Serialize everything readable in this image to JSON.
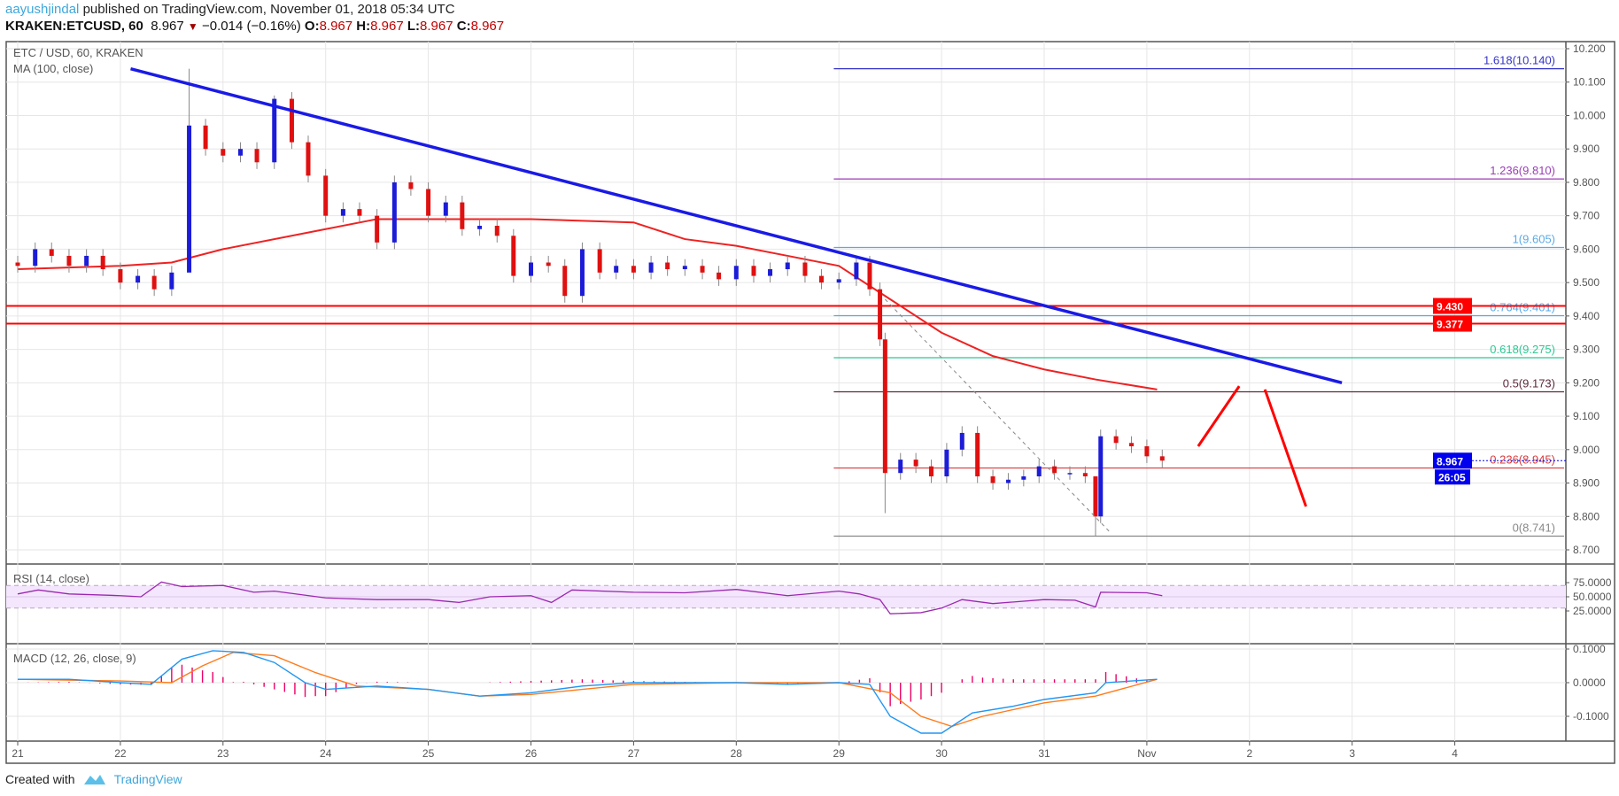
{
  "header": {
    "author": "aayushjindal",
    "published": "published on TradingView.com, November 01, 2018 05:34 UTC",
    "symbol": "KRAKEN:ETCUSD, 60",
    "last": "8.967",
    "change": "−0.014 (−0.16%)",
    "o_label": "O:",
    "o": "8.967",
    "h_label": "H:",
    "h": "8.967",
    "l_label": "L:",
    "l": "8.967",
    "c_label": "C:",
    "c": "8.967"
  },
  "footer": {
    "created_with": "Created with",
    "brand": "TradingView"
  },
  "colors": {
    "up": "#1c1cd8",
    "down": "#e01010",
    "trend": "#1a1ae6",
    "ma": "#ee2222",
    "hline": "#ff0000",
    "rsi": "#9c27b0",
    "macd": "#2196f3",
    "signal": "#ff7a1a",
    "hist": "#ee0066"
  },
  "chart_data": {
    "type": "candlestick",
    "title": "ETC / USD, 60, KRAKEN",
    "ma_label": "MA (100, close)",
    "ylim": [
      8.65,
      10.25
    ],
    "yticks": [
      "10.200",
      "10.100",
      "10.000",
      "9.900",
      "9.800",
      "9.700",
      "9.600",
      "9.500",
      "9.400",
      "9.300",
      "9.200",
      "9.100",
      "9.000",
      "8.900",
      "8.800",
      "8.700"
    ],
    "xticks": [
      {
        "d": 21,
        "label": "21"
      },
      {
        "d": 22,
        "label": "22"
      },
      {
        "d": 23,
        "label": "23"
      },
      {
        "d": 24,
        "label": "24"
      },
      {
        "d": 25,
        "label": "25"
      },
      {
        "d": 26,
        "label": "26"
      },
      {
        "d": 27,
        "label": "27"
      },
      {
        "d": 28,
        "label": "28"
      },
      {
        "d": 29,
        "label": "29"
      },
      {
        "d": 30,
        "label": "30"
      },
      {
        "d": 31,
        "label": "31"
      },
      {
        "d": 32,
        "label": "Nov"
      },
      {
        "d": 33,
        "label": "2"
      },
      {
        "d": 34,
        "label": "3"
      },
      {
        "d": 35,
        "label": "4"
      }
    ],
    "closes": [
      [
        21.0,
        9.55
      ],
      [
        21.17,
        9.6
      ],
      [
        21.33,
        9.58
      ],
      [
        21.5,
        9.55
      ],
      [
        21.67,
        9.58
      ],
      [
        21.83,
        9.54
      ],
      [
        22.0,
        9.5
      ],
      [
        22.17,
        9.52
      ],
      [
        22.33,
        9.48
      ],
      [
        22.5,
        9.53
      ],
      [
        22.67,
        9.97
      ],
      [
        22.83,
        9.9
      ],
      [
        23.0,
        9.88
      ],
      [
        23.17,
        9.9
      ],
      [
        23.33,
        9.86
      ],
      [
        23.5,
        10.05
      ],
      [
        23.67,
        9.92
      ],
      [
        23.83,
        9.82
      ],
      [
        24.0,
        9.7
      ],
      [
        24.17,
        9.72
      ],
      [
        24.33,
        9.7
      ],
      [
        24.5,
        9.62
      ],
      [
        24.67,
        9.8
      ],
      [
        24.83,
        9.78
      ],
      [
        25.0,
        9.7
      ],
      [
        25.17,
        9.74
      ],
      [
        25.33,
        9.66
      ],
      [
        25.5,
        9.67
      ],
      [
        25.67,
        9.64
      ],
      [
        25.83,
        9.52
      ],
      [
        26.0,
        9.56
      ],
      [
        26.17,
        9.55
      ],
      [
        26.33,
        9.46
      ],
      [
        26.5,
        9.6
      ],
      [
        26.67,
        9.53
      ],
      [
        26.83,
        9.55
      ],
      [
        27.0,
        9.53
      ],
      [
        27.17,
        9.56
      ],
      [
        27.33,
        9.54
      ],
      [
        27.5,
        9.55
      ],
      [
        27.67,
        9.53
      ],
      [
        27.83,
        9.51
      ],
      [
        28.0,
        9.55
      ],
      [
        28.17,
        9.52
      ],
      [
        28.33,
        9.54
      ],
      [
        28.5,
        9.56
      ],
      [
        28.67,
        9.52
      ],
      [
        28.83,
        9.5
      ],
      [
        29.0,
        9.51
      ],
      [
        29.17,
        9.56
      ],
      [
        29.3,
        9.48
      ],
      [
        29.4,
        9.33
      ],
      [
        29.45,
        8.93
      ],
      [
        29.6,
        8.97
      ],
      [
        29.75,
        8.95
      ],
      [
        29.9,
        8.92
      ],
      [
        30.05,
        9.0
      ],
      [
        30.2,
        9.05
      ],
      [
        30.35,
        8.92
      ],
      [
        30.5,
        8.9
      ],
      [
        30.65,
        8.91
      ],
      [
        30.8,
        8.92
      ],
      [
        30.95,
        8.95
      ],
      [
        31.1,
        8.93
      ],
      [
        31.25,
        8.93
      ],
      [
        31.4,
        8.92
      ],
      [
        31.5,
        8.8
      ],
      [
        31.55,
        9.04
      ],
      [
        31.7,
        9.02
      ],
      [
        31.85,
        9.01
      ],
      [
        32.0,
        8.98
      ],
      [
        32.15,
        8.967
      ]
    ],
    "spike_highs": [
      [
        22.67,
        10.14
      ],
      [
        23.5,
        10.06
      ],
      [
        31.5,
        8.8
      ]
    ],
    "spike_lows": [
      [
        31.5,
        8.741
      ],
      [
        29.45,
        8.81
      ],
      [
        22.67,
        9.71
      ]
    ],
    "ma100": [
      [
        21,
        9.54
      ],
      [
        22,
        9.55
      ],
      [
        22.5,
        9.56
      ],
      [
        23,
        9.6
      ],
      [
        24,
        9.66
      ],
      [
        24.5,
        9.69
      ],
      [
        25,
        9.69
      ],
      [
        26,
        9.69
      ],
      [
        27,
        9.68
      ],
      [
        27.5,
        9.63
      ],
      [
        28,
        9.61
      ],
      [
        28.5,
        9.58
      ],
      [
        29,
        9.55
      ],
      [
        29.5,
        9.45
      ],
      [
        30,
        9.35
      ],
      [
        30.5,
        9.28
      ],
      [
        31,
        9.24
      ],
      [
        31.5,
        9.21
      ],
      [
        32.1,
        9.18
      ]
    ],
    "trendline": [
      [
        22.1,
        10.14
      ],
      [
        33.9,
        9.2
      ]
    ],
    "projection_up": [
      [
        32.5,
        9.01
      ],
      [
        32.9,
        9.19
      ]
    ],
    "projection_down": [
      [
        33.15,
        9.18
      ],
      [
        33.55,
        8.83
      ]
    ],
    "retrace_dashed": [
      [
        29.45,
        9.45
      ],
      [
        31.65,
        8.75
      ]
    ],
    "hlines": [
      {
        "price": 9.43,
        "label": "9.430"
      },
      {
        "price": 9.377,
        "label": "9.377"
      }
    ],
    "fib": {
      "start": 28.95,
      "levels": [
        {
          "ratio": "1.618",
          "price": 10.14,
          "label": "1.618(10.140)",
          "color": "#3434c8"
        },
        {
          "ratio": "1.236",
          "price": 9.81,
          "label": "1.236(9.810)",
          "color": "#9c3cb8"
        },
        {
          "ratio": "1",
          "price": 9.605,
          "label": "1(9.605)",
          "color": "#5aa9e6"
        },
        {
          "ratio": "0.764",
          "price": 9.401,
          "label": "0.764(9.401)",
          "color": "#5aa9e6"
        },
        {
          "ratio": "0.618",
          "price": 9.275,
          "label": "0.618(9.275)",
          "color": "#2ec795"
        },
        {
          "ratio": "0.5",
          "price": 9.173,
          "label": "0.5(9.173)",
          "color": "#5d2a3e"
        },
        {
          "ratio": "0.236",
          "price": 8.945,
          "label": "0.236(8.945)",
          "color": "#d83a3a"
        },
        {
          "ratio": "0",
          "price": 8.741,
          "label": "0(8.741)",
          "color": "#888888"
        }
      ]
    },
    "last_price_tag": "8.967",
    "countdown_tag": "26:05",
    "rsi": {
      "label": "RSI (14, close)",
      "yticks": [
        "75.0000",
        "50.0000",
        "25.0000"
      ],
      "band": [
        30,
        70
      ],
      "values": [
        [
          21,
          55
        ],
        [
          21.2,
          62
        ],
        [
          21.5,
          55
        ],
        [
          22,
          52
        ],
        [
          22.2,
          50
        ],
        [
          22.4,
          76
        ],
        [
          22.6,
          68
        ],
        [
          23,
          70
        ],
        [
          23.3,
          58
        ],
        [
          23.5,
          60
        ],
        [
          24,
          48
        ],
        [
          24.5,
          45
        ],
        [
          25,
          45
        ],
        [
          25.3,
          40
        ],
        [
          25.6,
          50
        ],
        [
          26,
          52
        ],
        [
          26.2,
          40
        ],
        [
          26.4,
          62
        ],
        [
          27,
          58
        ],
        [
          27.5,
          57
        ],
        [
          28,
          63
        ],
        [
          28.5,
          52
        ],
        [
          29,
          60
        ],
        [
          29.2,
          55
        ],
        [
          29.4,
          45
        ],
        [
          29.5,
          20
        ],
        [
          29.8,
          22
        ],
        [
          30,
          30
        ],
        [
          30.2,
          45
        ],
        [
          30.5,
          38
        ],
        [
          31,
          45
        ],
        [
          31.3,
          44
        ],
        [
          31.5,
          32
        ],
        [
          31.55,
          58
        ],
        [
          32,
          57
        ],
        [
          32.15,
          52
        ]
      ]
    },
    "macd": {
      "label": "MACD (12, 26, close, 9)",
      "yticks": [
        "0.1000",
        "0.0000",
        "-0.1000"
      ],
      "macd": [
        [
          21,
          0.01
        ],
        [
          21.5,
          0.01
        ],
        [
          22,
          0.0
        ],
        [
          22.3,
          -0.005
        ],
        [
          22.6,
          0.07
        ],
        [
          22.9,
          0.095
        ],
        [
          23.2,
          0.09
        ],
        [
          23.5,
          0.06
        ],
        [
          23.8,
          0.0
        ],
        [
          24.0,
          -0.02
        ],
        [
          24.5,
          -0.01
        ],
        [
          25,
          -0.02
        ],
        [
          25.5,
          -0.04
        ],
        [
          26,
          -0.03
        ],
        [
          26.5,
          -0.01
        ],
        [
          27,
          0.0
        ],
        [
          28,
          0.0
        ],
        [
          28.5,
          -0.005
        ],
        [
          29,
          0.0
        ],
        [
          29.3,
          -0.005
        ],
        [
          29.5,
          -0.1
        ],
        [
          29.8,
          -0.15
        ],
        [
          30.0,
          -0.15
        ],
        [
          30.3,
          -0.09
        ],
        [
          30.7,
          -0.07
        ],
        [
          31,
          -0.05
        ],
        [
          31.5,
          -0.03
        ],
        [
          31.6,
          0.0
        ],
        [
          32.1,
          0.01
        ]
      ],
      "signal": [
        [
          21,
          0.01
        ],
        [
          22,
          0.005
        ],
        [
          22.5,
          0.0
        ],
        [
          22.8,
          0.05
        ],
        [
          23.1,
          0.09
        ],
        [
          23.5,
          0.08
        ],
        [
          23.9,
          0.03
        ],
        [
          24.3,
          -0.01
        ],
        [
          25,
          -0.02
        ],
        [
          25.5,
          -0.04
        ],
        [
          26,
          -0.035
        ],
        [
          26.5,
          -0.02
        ],
        [
          27,
          -0.005
        ],
        [
          28,
          0.0
        ],
        [
          29,
          0.0
        ],
        [
          29.5,
          -0.03
        ],
        [
          29.8,
          -0.1
        ],
        [
          30.1,
          -0.13
        ],
        [
          30.4,
          -0.1
        ],
        [
          31,
          -0.06
        ],
        [
          31.5,
          -0.04
        ],
        [
          32.1,
          0.01
        ]
      ]
    }
  }
}
